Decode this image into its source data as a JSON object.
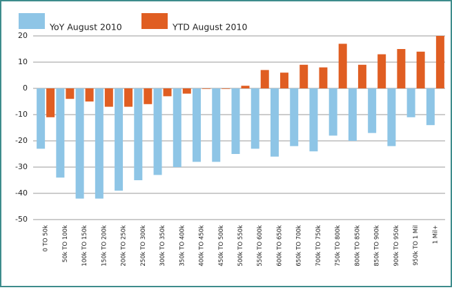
{
  "chart_data": {
    "type": "bar",
    "categories": [
      "0 TO 50k",
      "50k TO 100k",
      "100k TO 150k",
      "150k TO 200k",
      "200k TO 250k",
      "250k TO 300k",
      "300k TO 350k",
      "350k TO 400k",
      "400k TO 450k",
      "450k TO 500k",
      "500k TO 550k",
      "550k TO 600k",
      "600k TO 650k",
      "650k TO 700k",
      "700k TO 750k",
      "750k TO 800k",
      "800k TO 850k",
      "850k TO 900k",
      "900k TO 950k",
      "950k TO 1 Mil",
      "1 Mil+"
    ],
    "series": [
      {
        "name": "YoY August 2010",
        "color": "#8ec5e6",
        "values": [
          -23,
          -34,
          -42,
          -42,
          -39,
          -35,
          -33,
          -30,
          -28,
          -28,
          -25,
          -23,
          -26,
          -22,
          -24,
          -18,
          -20,
          -17,
          -22,
          -11,
          -14
        ]
      },
      {
        "name": "YTD August 2010",
        "color": "#e05e22",
        "values": [
          -11,
          -4,
          -5,
          -7,
          -7,
          -6,
          -3,
          -2,
          0,
          0,
          1,
          7,
          6,
          9,
          8,
          17,
          9,
          13,
          15,
          14,
          20
        ]
      }
    ],
    "ylim": [
      -50,
      20
    ],
    "yticks": [
      -50,
      -40,
      -30,
      -20,
      -10,
      0,
      10,
      20
    ],
    "grid": true
  }
}
